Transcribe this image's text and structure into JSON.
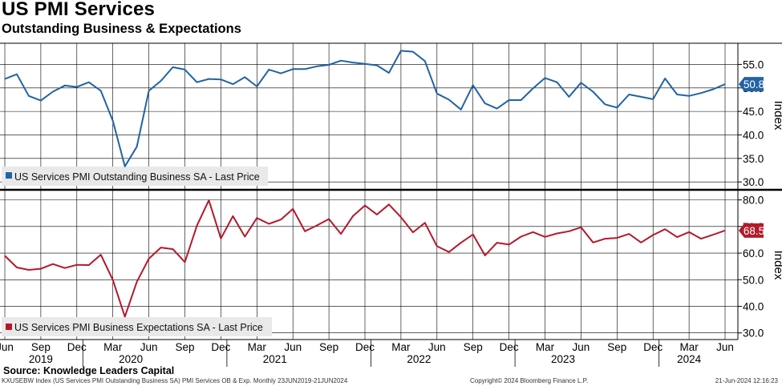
{
  "header": {
    "title": "US PMI Services",
    "subtitle": "Outstanding Business & Expectations"
  },
  "source": "Source: Knowledge Leaders Capital",
  "footer": {
    "left": "KXUSEBW Index (US Services PMI Outstanding Business SA) PMI Services OB & Exp.  Monthly 23JUN2019-21JUN2024",
    "middle": "Copyright© 2024 Bloomberg Finance L.P.",
    "right": "21-Jun-2024 12:16:23"
  },
  "colors": {
    "top_series": "#2163a4",
    "bottom_series": "#b3192b",
    "grid": "#000000",
    "legend_bg": "#e9e9e9"
  },
  "chart_data": [
    {
      "type": "line",
      "panel": "top",
      "ylabel": "Index",
      "ylim": [
        28.5,
        59.5
      ],
      "yticks": [
        "55.0",
        "50.0",
        "45.0",
        "40.0",
        "35.0",
        "30.0"
      ],
      "last_value_label": "50.8",
      "legend_placement": "bottom-left",
      "series": [
        {
          "name": "US Services PMI Outstanding Business SA - Last Price",
          "values": [
            51.9,
            52.9,
            48.3,
            47.3,
            49.2,
            50.5,
            50.2,
            51.2,
            49.4,
            43.0,
            33.3,
            37.5,
            49.4,
            51.5,
            54.4,
            53.9,
            51.2,
            51.9,
            51.8,
            50.8,
            52.3,
            50.3,
            53.9,
            53.1,
            54.0,
            54.0,
            54.6,
            54.9,
            55.8,
            55.4,
            55.1,
            54.8,
            53.2,
            57.9,
            57.7,
            55.7,
            48.8,
            47.5,
            45.4,
            50.6,
            46.7,
            45.6,
            47.4,
            47.4,
            49.9,
            52.1,
            51.2,
            48.1,
            51.1,
            49.2,
            46.5,
            45.8,
            48.6,
            48.1,
            47.6,
            52.0,
            48.6,
            48.3,
            48.9,
            49.7,
            50.8
          ]
        }
      ]
    },
    {
      "type": "line",
      "panel": "bottom",
      "ylabel": "Index",
      "xlabel": "",
      "ylim": [
        27.5,
        83.5
      ],
      "yticks": [
        "80.0",
        "70.0",
        "60.0",
        "50.0",
        "40.0",
        "30.0"
      ],
      "last_value_label": "68.5",
      "legend_placement": "bottom-left",
      "x_tick_labels": [
        "Jun",
        "Sep",
        "Dec",
        "Mar",
        "Jun",
        "Sep",
        "Dec",
        "Mar",
        "Jun",
        "Sep",
        "Dec",
        "Mar",
        "Jun",
        "Sep",
        "Dec",
        "Mar",
        "Jun",
        "Sep",
        "Dec",
        "Mar",
        "Jun"
      ],
      "year_labels": [
        "2019",
        "2020",
        "2021",
        "2022",
        "2023",
        "2024"
      ],
      "series": [
        {
          "name": "US Services PMI Business Expectations SA - Last Price",
          "values": [
            59.0,
            54.6,
            53.7,
            54.1,
            55.9,
            54.4,
            55.6,
            55.5,
            59.4,
            49.9,
            36.1,
            49.2,
            57.9,
            62.1,
            61.5,
            56.6,
            70.3,
            79.9,
            65.5,
            73.9,
            66.2,
            73.2,
            71.0,
            72.6,
            76.6,
            68.2,
            70.4,
            72.8,
            67.2,
            73.9,
            77.9,
            74.5,
            78.3,
            73.5,
            67.8,
            71.4,
            62.6,
            60.4,
            63.9,
            67.0,
            59.1,
            63.9,
            63.2,
            66.2,
            67.9,
            66.1,
            67.4,
            68.2,
            69.7,
            64.0,
            65.4,
            65.7,
            67.2,
            64.0,
            66.8,
            69.0,
            66.0,
            67.9,
            65.4,
            66.9,
            68.5
          ]
        }
      ]
    }
  ]
}
